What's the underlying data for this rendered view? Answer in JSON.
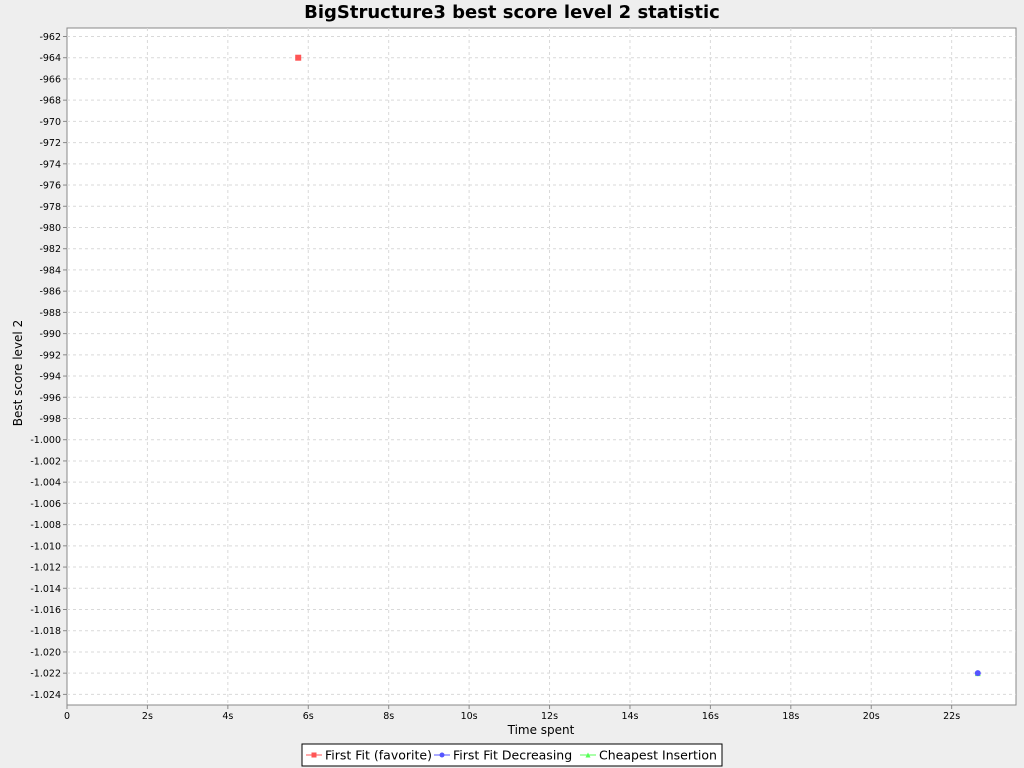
{
  "chart_data": {
    "type": "scatter",
    "title": "BigStructure3 best score level 2 statistic",
    "xlabel": "Time spent",
    "ylabel": "Best score level 2",
    "xlim": [
      0,
      23.6
    ],
    "ylim": [
      -1025,
      -961.2
    ],
    "x_ticks": [
      {
        "value": 0,
        "label": "0"
      },
      {
        "value": 2,
        "label": "2s"
      },
      {
        "value": 4,
        "label": "4s"
      },
      {
        "value": 6,
        "label": "6s"
      },
      {
        "value": 8,
        "label": "8s"
      },
      {
        "value": 10,
        "label": "10s"
      },
      {
        "value": 12,
        "label": "12s"
      },
      {
        "value": 14,
        "label": "14s"
      },
      {
        "value": 16,
        "label": "16s"
      },
      {
        "value": 18,
        "label": "18s"
      },
      {
        "value": 20,
        "label": "20s"
      },
      {
        "value": 22,
        "label": "22s"
      }
    ],
    "y_ticks": [
      {
        "value": -962,
        "label": "-962"
      },
      {
        "value": -964,
        "label": "-964"
      },
      {
        "value": -966,
        "label": "-966"
      },
      {
        "value": -968,
        "label": "-968"
      },
      {
        "value": -970,
        "label": "-970"
      },
      {
        "value": -972,
        "label": "-972"
      },
      {
        "value": -974,
        "label": "-974"
      },
      {
        "value": -976,
        "label": "-976"
      },
      {
        "value": -978,
        "label": "-978"
      },
      {
        "value": -980,
        "label": "-980"
      },
      {
        "value": -982,
        "label": "-982"
      },
      {
        "value": -984,
        "label": "-984"
      },
      {
        "value": -986,
        "label": "-986"
      },
      {
        "value": -988,
        "label": "-988"
      },
      {
        "value": -990,
        "label": "-990"
      },
      {
        "value": -992,
        "label": "-992"
      },
      {
        "value": -994,
        "label": "-994"
      },
      {
        "value": -996,
        "label": "-996"
      },
      {
        "value": -998,
        "label": "-998"
      },
      {
        "value": -1000,
        "label": "-1.000"
      },
      {
        "value": -1002,
        "label": "-1.002"
      },
      {
        "value": -1004,
        "label": "-1.004"
      },
      {
        "value": -1006,
        "label": "-1.006"
      },
      {
        "value": -1008,
        "label": "-1.008"
      },
      {
        "value": -1010,
        "label": "-1.010"
      },
      {
        "value": -1012,
        "label": "-1.012"
      },
      {
        "value": -1014,
        "label": "-1.014"
      },
      {
        "value": -1016,
        "label": "-1.016"
      },
      {
        "value": -1018,
        "label": "-1.018"
      },
      {
        "value": -1020,
        "label": "-1.020"
      },
      {
        "value": -1022,
        "label": "-1.022"
      },
      {
        "value": -1024,
        "label": "-1.024"
      }
    ],
    "grid": true,
    "legend_position": "bottom-center",
    "series": [
      {
        "name": "First Fit (favorite)",
        "color": "#ff5555",
        "marker": "square",
        "points": [
          {
            "x": 5.75,
            "y": -964
          }
        ]
      },
      {
        "name": "First Fit Decreasing",
        "color": "#5555ff",
        "marker": "circle",
        "points": [
          {
            "x": 22.65,
            "y": -1022
          }
        ]
      },
      {
        "name": "Cheapest Insertion",
        "color": "#55ff55",
        "marker": "triangle",
        "points": [
          {
            "x": 22.65,
            "y": -1022
          }
        ]
      }
    ]
  }
}
